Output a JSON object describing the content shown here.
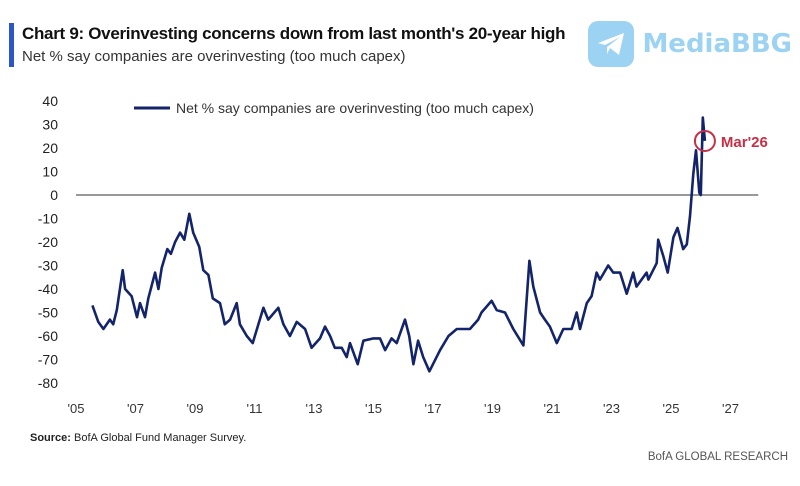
{
  "chart_data": {
    "type": "line",
    "title": "Chart 9: Overinvesting concerns down from last month's 20-year high",
    "subtitle": "Net % say companies are overinvesting (too much capex)",
    "xlabel": "",
    "ylabel": "",
    "xlim": [
      2005,
      2028
    ],
    "ylim": [
      -80,
      40
    ],
    "yticks": [
      40,
      30,
      20,
      10,
      0,
      -10,
      -20,
      -30,
      -40,
      -50,
      -60,
      -70,
      -80
    ],
    "xticks": [
      2005,
      2007,
      2009,
      2011,
      2013,
      2015,
      2017,
      2019,
      2021,
      2023,
      2025,
      2027
    ],
    "xtick_labels": [
      "'05",
      "'07",
      "'09",
      "'11",
      "'13",
      "'15",
      "'17",
      "'19",
      "'21",
      "'23",
      "'25",
      "'27"
    ],
    "grid": false,
    "zero_line": true,
    "legend_placement": "top",
    "series": [
      {
        "name": "Net % say companies are overinvesting (too much capex)",
        "color": "#13246b",
        "x": [
          2005.55,
          2005.75,
          2005.92,
          2006.14,
          2006.25,
          2006.37,
          2006.57,
          2006.65,
          2006.87,
          2007.05,
          2007.15,
          2007.32,
          2007.43,
          2007.66,
          2007.77,
          2007.88,
          2008.07,
          2008.19,
          2008.33,
          2008.5,
          2008.64,
          2008.81,
          2008.94,
          2009.14,
          2009.28,
          2009.45,
          2009.6,
          2009.84,
          2010.0,
          2010.18,
          2010.4,
          2010.51,
          2010.74,
          2010.94,
          2011.13,
          2011.3,
          2011.46,
          2011.8,
          2011.97,
          2012.19,
          2012.42,
          2012.7,
          2012.92,
          2013.2,
          2013.37,
          2013.54,
          2013.7,
          2013.93,
          2014.1,
          2014.21,
          2014.47,
          2014.66,
          2015.0,
          2015.22,
          2015.39,
          2015.61,
          2015.78,
          2016.06,
          2016.2,
          2016.34,
          2016.5,
          2016.67,
          2016.88,
          2017.24,
          2017.52,
          2017.8,
          2018.24,
          2018.52,
          2018.63,
          2018.97,
          2019.14,
          2019.42,
          2019.7,
          2020.04,
          2020.24,
          2020.37,
          2020.6,
          2020.76,
          2020.93,
          2021.16,
          2021.38,
          2021.66,
          2021.83,
          2021.94,
          2022.17,
          2022.33,
          2022.5,
          2022.61,
          2022.89,
          2023.06,
          2023.29,
          2023.51,
          2023.73,
          2023.84,
          2024.18,
          2024.24,
          2024.52,
          2024.57,
          2024.74,
          2024.89,
          2025.08,
          2025.22,
          2025.41,
          2025.53,
          2025.64,
          2025.75,
          2025.84,
          2025.95,
          2026.0,
          2026.07,
          2026.14
        ],
        "y": [
          -47,
          -54,
          -57,
          -53,
          -55,
          -49,
          -32,
          -40,
          -43,
          -52,
          -46,
          -52,
          -44,
          -33,
          -40,
          -31,
          -23,
          -25,
          -20,
          -16,
          -19,
          -8,
          -16,
          -22,
          -32,
          -34,
          -44,
          -46,
          -55,
          -53,
          -46,
          -55,
          -60,
          -63,
          -55,
          -48,
          -53,
          -48,
          -55,
          -60,
          -54,
          -57,
          -65,
          -61,
          -56,
          -60,
          -65,
          -65,
          -69,
          -63,
          -72,
          -62,
          -61,
          -61,
          -66,
          -61,
          -63,
          -53,
          -60,
          -72,
          -62,
          -69,
          -75,
          -66,
          -60,
          -57,
          -57,
          -53,
          -50,
          -45,
          -49,
          -50,
          -57,
          -64,
          -28,
          -39,
          -50,
          -53,
          -56,
          -63,
          -57,
          -57,
          -50,
          -57,
          -46,
          -43,
          -33,
          -36,
          -30,
          -33,
          -33,
          -42,
          -33,
          -39,
          -33,
          -36,
          -29,
          -19,
          -26,
          -33,
          -18,
          -14,
          -23,
          -21,
          -9,
          9,
          19,
          1,
          0,
          33,
          23
        ]
      }
    ],
    "annotations": [
      {
        "label": "Mar'26",
        "x": 2026.14,
        "y": 23,
        "color": "#c62f45",
        "marker": "circle"
      }
    ]
  },
  "footer": {
    "source_label": "Source:",
    "source_text": "BofA Global Fund Manager Survey.",
    "brand": "BofA GLOBAL RESEARCH"
  },
  "watermark": {
    "text": "MediaBBG",
    "icon": "telegram-plane-icon",
    "color": "#7cc3ee"
  },
  "colors": {
    "accent_bar": "#2a56c6",
    "line": "#13246b",
    "annotation": "#c62f45"
  }
}
